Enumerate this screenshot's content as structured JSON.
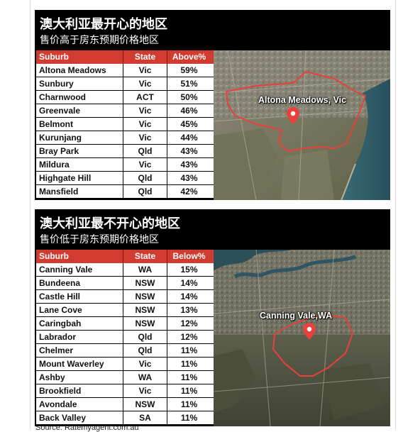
{
  "happy": {
    "title": "澳大利亚最开心的地区",
    "subtitle": "售价高于房东预期价格地区",
    "columns": {
      "suburb": "Suburb",
      "state": "State",
      "pct": "Above%"
    },
    "rows": [
      {
        "suburb": "Altona Meadows",
        "state": "Vic",
        "pct": "59%"
      },
      {
        "suburb": "Sunbury",
        "state": "Vic",
        "pct": "51%"
      },
      {
        "suburb": "Charnwood",
        "state": "ACT",
        "pct": "50%"
      },
      {
        "suburb": "Greenvale",
        "state": "Vic",
        "pct": "46%"
      },
      {
        "suburb": "Belmont",
        "state": "Vic",
        "pct": "45%"
      },
      {
        "suburb": "Kurunjang",
        "state": "Vic",
        "pct": "44%"
      },
      {
        "suburb": "Bray Park",
        "state": "Qld",
        "pct": "43%"
      },
      {
        "suburb": "Mildura",
        "state": "Vic",
        "pct": "43%"
      },
      {
        "suburb": "Highgate Hill",
        "state": "Qld",
        "pct": "43%"
      },
      {
        "suburb": "Mansfield",
        "state": "Qld",
        "pct": "42%"
      }
    ],
    "map_label": "Altona Meadows, Vic"
  },
  "unhappy": {
    "title": "澳大利亚最不开心的地区",
    "subtitle": "售价低于房东预期价格地区",
    "columns": {
      "suburb": "Suburb",
      "state": "State",
      "pct": "Below%"
    },
    "rows": [
      {
        "suburb": "Canning Vale",
        "state": "WA",
        "pct": "15%"
      },
      {
        "suburb": "Bundeena",
        "state": "NSW",
        "pct": "14%"
      },
      {
        "suburb": "Castle Hill",
        "state": "NSW",
        "pct": "14%"
      },
      {
        "suburb": "Lane Cove",
        "state": "NSW",
        "pct": "13%"
      },
      {
        "suburb": "Caringbah",
        "state": "NSW",
        "pct": "12%"
      },
      {
        "suburb": "Labrador",
        "state": "Qld",
        "pct": "12%"
      },
      {
        "suburb": "Chelmer",
        "state": "Qld",
        "pct": "11%"
      },
      {
        "suburb": "Mount Waverley",
        "state": "Vic",
        "pct": "11%"
      },
      {
        "suburb": "Ashby",
        "state": "WA",
        "pct": "11%"
      },
      {
        "suburb": "Brookfield",
        "state": "Vic",
        "pct": "11%"
      },
      {
        "suburb": "Avondale",
        "state": "NSW",
        "pct": "11%"
      },
      {
        "suburb": "Back Valley",
        "state": "SA",
        "pct": "11%"
      }
    ],
    "map_label": "Canning Vale,WA"
  },
  "source": "Source: Ratemyagent.com.au",
  "colors": {
    "header_red": "#d23b2f",
    "boundary_red": "#e8403a",
    "panel_bg": "#000000"
  },
  "icons": {
    "map_pin": "location-pin-icon"
  }
}
